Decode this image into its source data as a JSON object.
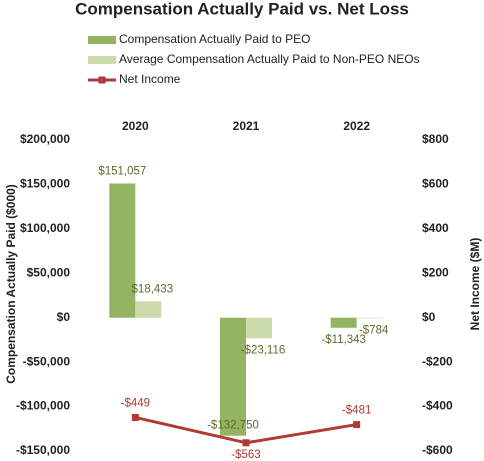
{
  "chart_data": {
    "type": "bar",
    "title": "Compensation Actually Paid vs. Net Loss",
    "categories": [
      "2020",
      "2021",
      "2022"
    ],
    "series": [
      {
        "name": "Compensation Actually Paid to PEO",
        "type": "bar",
        "color": "#95b462",
        "values": [
          151057,
          -132750,
          -11343
        ],
        "value_labels": [
          "$151,057",
          "-$132,750",
          "-$11,343"
        ]
      },
      {
        "name": "Average Compensation Actually Paid to Non-PEO NEOs",
        "type": "bar",
        "color": "#cbdbac",
        "values": [
          18433,
          -23116,
          -784
        ],
        "value_labels": [
          "$18,433",
          "-$23,116",
          "-$784"
        ]
      },
      {
        "name": "Net Income",
        "type": "line",
        "axis": "y2",
        "color": "#b03a35",
        "values": [
          -449,
          -563,
          -481
        ],
        "value_labels": [
          "-$449",
          "-$563",
          "-$481"
        ]
      }
    ],
    "ylabel": "Compensation Actually Paid ($000)",
    "y2label": "Net Income ($M)",
    "ylim": [
      -150000,
      200000
    ],
    "yticks": [
      {
        "value": -150000,
        "label": "-$150,000"
      },
      {
        "value": -100000,
        "label": "-$100,000"
      },
      {
        "value": -50000,
        "label": "-$50,000"
      },
      {
        "value": 0,
        "label": "$0"
      },
      {
        "value": 50000,
        "label": "$50,000"
      },
      {
        "value": 100000,
        "label": "$100,000"
      },
      {
        "value": 150000,
        "label": "$150,000"
      },
      {
        "value": 200000,
        "label": "$200,000"
      }
    ],
    "y2lim": [
      -600,
      800
    ],
    "y2ticks": [
      {
        "value": -600,
        "label": "-$600"
      },
      {
        "value": -400,
        "label": "-$400"
      },
      {
        "value": -200,
        "label": "-$200"
      },
      {
        "value": 0,
        "label": "$0"
      },
      {
        "value": 200,
        "label": "$200"
      },
      {
        "value": 400,
        "label": "$400"
      },
      {
        "value": 600,
        "label": "$600"
      },
      {
        "value": 800,
        "label": "$800"
      }
    ],
    "grid": false
  }
}
